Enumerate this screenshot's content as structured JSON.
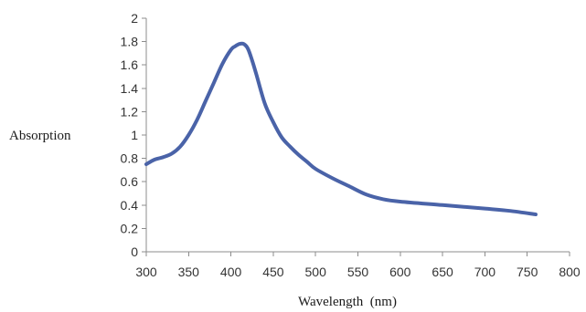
{
  "chart_data": {
    "type": "line",
    "title": "",
    "xlabel": "Wavelength  (nm)",
    "ylabel": "Absorption",
    "xlim": [
      300,
      800
    ],
    "ylim": [
      0,
      2
    ],
    "x_ticks": [
      "300",
      "350",
      "400",
      "450",
      "500",
      "550",
      "600",
      "650",
      "700",
      "750",
      "800"
    ],
    "y_ticks": [
      "0",
      "0.2",
      "0.4",
      "0.6",
      "0.8",
      "1",
      "1.2",
      "1.4",
      "1.6",
      "1.8",
      "2"
    ],
    "grid": false,
    "legend": "none",
    "series": [
      {
        "color": "#4a63a8",
        "points": [
          [
            300,
            0.75
          ],
          [
            310,
            0.79
          ],
          [
            320,
            0.81
          ],
          [
            330,
            0.84
          ],
          [
            340,
            0.9
          ],
          [
            350,
            1.0
          ],
          [
            360,
            1.13
          ],
          [
            370,
            1.29
          ],
          [
            380,
            1.45
          ],
          [
            390,
            1.61
          ],
          [
            400,
            1.73
          ],
          [
            405,
            1.76
          ],
          [
            410,
            1.78
          ],
          [
            415,
            1.78
          ],
          [
            420,
            1.74
          ],
          [
            425,
            1.64
          ],
          [
            430,
            1.52
          ],
          [
            440,
            1.27
          ],
          [
            450,
            1.11
          ],
          [
            460,
            0.98
          ],
          [
            470,
            0.9
          ],
          [
            480,
            0.83
          ],
          [
            490,
            0.77
          ],
          [
            500,
            0.71
          ],
          [
            520,
            0.63
          ],
          [
            540,
            0.56
          ],
          [
            560,
            0.49
          ],
          [
            580,
            0.45
          ],
          [
            600,
            0.43
          ],
          [
            650,
            0.4
          ],
          [
            700,
            0.37
          ],
          [
            730,
            0.35
          ],
          [
            760,
            0.32
          ]
        ]
      }
    ]
  }
}
